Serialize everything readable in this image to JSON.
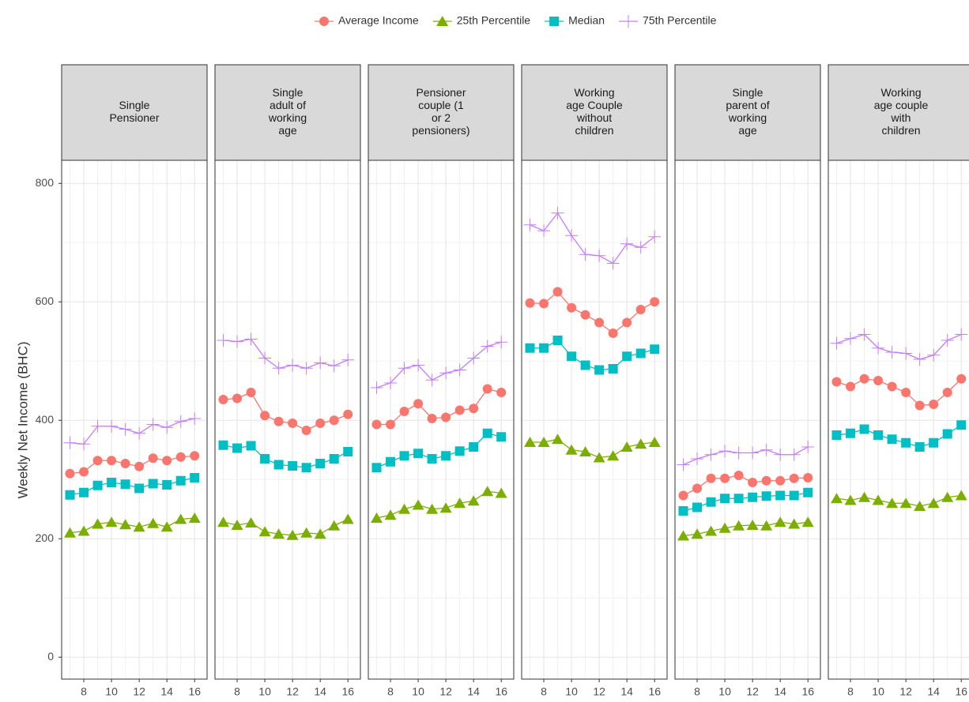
{
  "chart_data": {
    "type": "line",
    "y_label": "Weekly Net Income (BHC)",
    "series": [
      {
        "name": "Average Income",
        "color": "#F8766D",
        "marker": "circle"
      },
      {
        "name": "25th Percentile",
        "color": "#7CAE00",
        "marker": "triangle"
      },
      {
        "name": "Median",
        "color": "#00BFC4",
        "marker": "square"
      },
      {
        "name": "75th Percentile",
        "color": "#C77CFF",
        "marker": "plus"
      }
    ],
    "x": [
      7,
      8,
      9,
      10,
      11,
      12,
      13,
      14,
      15,
      16
    ],
    "xlim": [
      6.4,
      16.9
    ],
    "xticks": [
      8,
      10,
      12,
      14,
      16
    ],
    "ylim": [
      -37,
      839
    ],
    "yticks": [
      0,
      200,
      400,
      600,
      800
    ],
    "grid": true,
    "legend": "top",
    "panels": [
      {
        "title": [
          "Single",
          "Pensioner"
        ],
        "series": [
          {
            "values": [
              310,
              313,
              332,
              332,
              327,
              322,
              336,
              332,
              338,
              340
            ]
          },
          {
            "values": [
              210,
              213,
              225,
              228,
              224,
              220,
              226,
              220,
              233,
              235
            ]
          },
          {
            "values": [
              274,
              278,
              290,
              295,
              292,
              285,
              293,
              291,
              298,
              303
            ]
          },
          {
            "values": [
              362,
              360,
              390,
              390,
              385,
              378,
              393,
              388,
              398,
              403
            ]
          }
        ]
      },
      {
        "title": [
          "Single",
          "adult of",
          "working",
          "age"
        ],
        "series": [
          {
            "values": [
              435,
              437,
              447,
              408,
              398,
              395,
              383,
              395,
              400,
              410
            ]
          },
          {
            "values": [
              228,
              223,
              227,
              212,
              208,
              206,
              210,
              208,
              222,
              233
            ]
          },
          {
            "values": [
              358,
              353,
              357,
              335,
              325,
              323,
              320,
              327,
              335,
              347
            ]
          },
          {
            "values": [
              535,
              533,
              537,
              505,
              488,
              493,
              488,
              497,
              492,
              502
            ]
          }
        ]
      },
      {
        "title": [
          "Pensioner",
          "couple (1",
          "or 2",
          "pensioners)"
        ],
        "series": [
          {
            "values": [
              393,
              393,
              415,
              428,
              403,
              405,
              417,
              420,
              453,
              447
            ]
          },
          {
            "values": [
              235,
              240,
              250,
              257,
              250,
              252,
              260,
              264,
              280,
              277
            ]
          },
          {
            "values": [
              320,
              330,
              340,
              344,
              335,
              340,
              348,
              355,
              378,
              372
            ]
          },
          {
            "values": [
              455,
              463,
              488,
              493,
              468,
              480,
              485,
              505,
              525,
              532
            ]
          }
        ]
      },
      {
        "title": [
          "Working",
          "age Couple",
          "without",
          "children"
        ],
        "series": [
          {
            "values": [
              598,
              597,
              617,
              590,
              578,
              565,
              547,
              565,
              587,
              600
            ]
          },
          {
            "values": [
              363,
              363,
              368,
              350,
              347,
              337,
              340,
              355,
              360,
              363
            ]
          },
          {
            "values": [
              522,
              522,
              535,
              508,
              493,
              485,
              487,
              508,
              513,
              520
            ]
          },
          {
            "values": [
              730,
              720,
              750,
              712,
              680,
              678,
              665,
              698,
              692,
              710
            ]
          }
        ]
      },
      {
        "title": [
          "Single",
          "parent of",
          "working",
          "age"
        ],
        "series": [
          {
            "values": [
              273,
              285,
              302,
              302,
              307,
              295,
              298,
              298,
              302,
              303
            ]
          },
          {
            "values": [
              205,
              208,
              213,
              218,
              222,
              223,
              222,
              228,
              225,
              228
            ]
          },
          {
            "values": [
              247,
              253,
              262,
              268,
              268,
              270,
              272,
              273,
              273,
              278
            ]
          },
          {
            "values": [
              325,
              335,
              342,
              348,
              345,
              345,
              350,
              342,
              342,
              355
            ]
          }
        ]
      },
      {
        "title": [
          "Working",
          "age couple",
          "with",
          "children"
        ],
        "series": [
          {
            "values": [
              465,
              457,
              470,
              467,
              457,
              447,
              425,
              427,
              447,
              470
            ]
          },
          {
            "values": [
              268,
              265,
              270,
              265,
              260,
              260,
              255,
              260,
              270,
              273
            ]
          },
          {
            "values": [
              375,
              378,
              385,
              375,
              368,
              362,
              355,
              362,
              377,
              392
            ]
          },
          {
            "values": [
              530,
              538,
              545,
              522,
              515,
              513,
              503,
              510,
              535,
              545
            ]
          }
        ]
      }
    ]
  }
}
